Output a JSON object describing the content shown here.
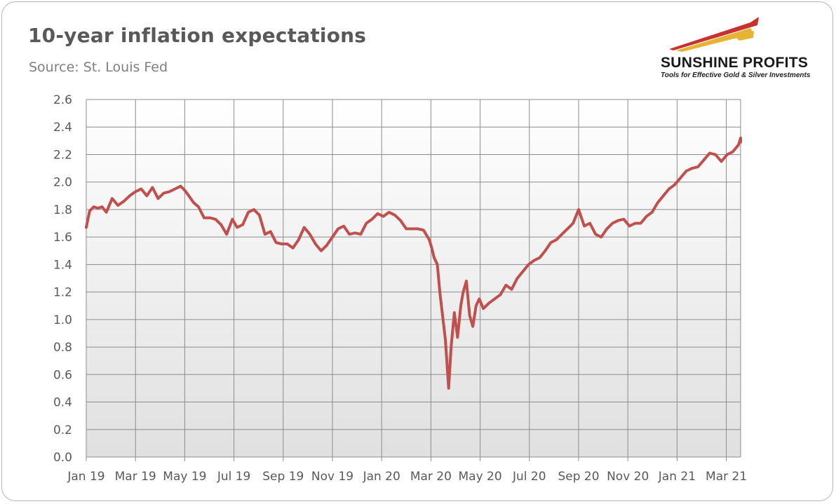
{
  "header": {
    "title": "10-year inflation expectations",
    "source": "Source: St. Louis Fed"
  },
  "logo": {
    "name": "SUNSHINE PROFITS",
    "tagline": "Tools for Effective Gold & Silver Investments"
  },
  "colors": {
    "line": "#c0504d",
    "plot_background_top": "#ffffff",
    "plot_background_bottom": "#e0e0e0",
    "grid": "#8c8c8c",
    "logo_swoosh_red": "#c8322c",
    "logo_swoosh_gold": "#e6b432"
  },
  "chart_data": {
    "type": "line",
    "title": "10-year inflation expectations",
    "xlabel": "",
    "ylabel": "",
    "ylim": [
      0,
      2.6
    ],
    "yticks": [
      "0.0",
      "0.2",
      "0.4",
      "0.6",
      "0.8",
      "1.0",
      "1.2",
      "1.4",
      "1.6",
      "1.8",
      "2.0",
      "2.2",
      "2.4",
      "2.6"
    ],
    "xticks": [
      "Jan 19",
      "Mar 19",
      "May 19",
      "Jul 19",
      "Sep 19",
      "Nov 19",
      "Jan 20",
      "Mar 20",
      "May 20",
      "Jul 20",
      "Sep 20",
      "Nov 20",
      "Jan 21",
      "Mar 21"
    ],
    "grid": true,
    "legend": "none",
    "series": [
      {
        "x": [
          "2019-01-01",
          "2019-01-05",
          "2019-01-10",
          "2019-01-15",
          "2019-01-20",
          "2019-01-25",
          "2019-02-01",
          "2019-02-08",
          "2019-02-15",
          "2019-02-22",
          "2019-03-01",
          "2019-03-08",
          "2019-03-15",
          "2019-03-22",
          "2019-03-29",
          "2019-04-05",
          "2019-04-12",
          "2019-04-19",
          "2019-04-26",
          "2019-05-01",
          "2019-05-06",
          "2019-05-12",
          "2019-05-18",
          "2019-05-25",
          "2019-06-01",
          "2019-06-08",
          "2019-06-15",
          "2019-06-22",
          "2019-06-29",
          "2019-07-05",
          "2019-07-12",
          "2019-07-19",
          "2019-07-26",
          "2019-08-02",
          "2019-08-09",
          "2019-08-16",
          "2019-08-23",
          "2019-08-30",
          "2019-09-06",
          "2019-09-13",
          "2019-09-20",
          "2019-09-27",
          "2019-10-04",
          "2019-10-11",
          "2019-10-18",
          "2019-10-25",
          "2019-11-01",
          "2019-11-08",
          "2019-11-15",
          "2019-11-22",
          "2019-11-29",
          "2019-12-06",
          "2019-12-13",
          "2019-12-20",
          "2019-12-27",
          "2020-01-03",
          "2020-01-10",
          "2020-01-17",
          "2020-01-24",
          "2020-01-31",
          "2020-02-07",
          "2020-02-14",
          "2020-02-21",
          "2020-02-28",
          "2020-03-02",
          "2020-03-05",
          "2020-03-09",
          "2020-03-12",
          "2020-03-16",
          "2020-03-19",
          "2020-03-23",
          "2020-03-26",
          "2020-03-30",
          "2020-04-03",
          "2020-04-07",
          "2020-04-10",
          "2020-04-14",
          "2020-04-18",
          "2020-04-22",
          "2020-04-26",
          "2020-04-30",
          "2020-05-05",
          "2020-05-12",
          "2020-05-19",
          "2020-05-26",
          "2020-06-02",
          "2020-06-09",
          "2020-06-16",
          "2020-06-23",
          "2020-06-30",
          "2020-07-07",
          "2020-07-14",
          "2020-07-21",
          "2020-07-28",
          "2020-08-04",
          "2020-08-11",
          "2020-08-18",
          "2020-08-25",
          "2020-09-01",
          "2020-09-08",
          "2020-09-15",
          "2020-09-22",
          "2020-09-29",
          "2020-10-06",
          "2020-10-13",
          "2020-10-20",
          "2020-10-27",
          "2020-11-03",
          "2020-11-10",
          "2020-11-17",
          "2020-11-24",
          "2020-12-01",
          "2020-12-08",
          "2020-12-15",
          "2020-12-22",
          "2020-12-29",
          "2021-01-05",
          "2021-01-12",
          "2021-01-19",
          "2021-01-26",
          "2021-02-02",
          "2021-02-09",
          "2021-02-16",
          "2021-02-23",
          "2021-03-02",
          "2021-03-09",
          "2021-03-16",
          "2021-03-23",
          "2021-03-30"
        ],
        "values": [
          1.67,
          1.79,
          1.82,
          1.81,
          1.82,
          1.78,
          1.88,
          1.83,
          1.86,
          1.9,
          1.93,
          1.95,
          1.9,
          1.96,
          1.88,
          1.92,
          1.93,
          1.95,
          1.97,
          1.94,
          1.9,
          1.85,
          1.82,
          1.74,
          1.74,
          1.73,
          1.69,
          1.62,
          1.73,
          1.67,
          1.69,
          1.78,
          1.8,
          1.76,
          1.62,
          1.64,
          1.56,
          1.55,
          1.55,
          1.52,
          1.58,
          1.67,
          1.62,
          1.55,
          1.5,
          1.54,
          1.6,
          1.66,
          1.68,
          1.62,
          1.63,
          1.62,
          1.7,
          1.73,
          1.77,
          1.75,
          1.78,
          1.76,
          1.72,
          1.66,
          1.66,
          1.66,
          1.65,
          1.58,
          1.52,
          1.45,
          1.4,
          1.2,
          1.0,
          0.85,
          0.5,
          0.8,
          1.05,
          0.87,
          1.1,
          1.2,
          1.28,
          1.03,
          0.95,
          1.1,
          1.15,
          1.08,
          1.12,
          1.15,
          1.18,
          1.25,
          1.22,
          1.3,
          1.35,
          1.4,
          1.43,
          1.45,
          1.5,
          1.56,
          1.58,
          1.62,
          1.66,
          1.7,
          1.8,
          1.68,
          1.7,
          1.62,
          1.6,
          1.66,
          1.7,
          1.72,
          1.73,
          1.68,
          1.7,
          1.7,
          1.75,
          1.78,
          1.85,
          1.9,
          1.95,
          1.98,
          2.03,
          2.08,
          2.1,
          2.11,
          2.16,
          2.21,
          2.2,
          2.15,
          2.2,
          2.22,
          2.27,
          2.32,
          2.29
        ]
      }
    ]
  }
}
